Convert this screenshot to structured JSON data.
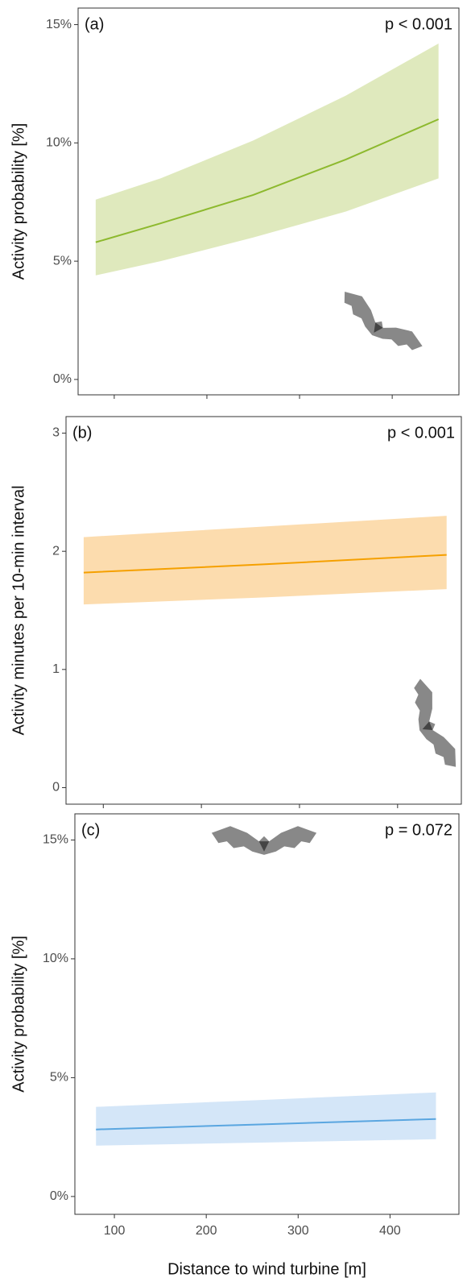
{
  "chart_data": [
    {
      "type": "line",
      "panel": "(a)",
      "annotation": "p < 0.001",
      "ylabel": "Activity probability [%]",
      "x": [
        80,
        150,
        250,
        350,
        450
      ],
      "series": [
        {
          "color": "#8db92e",
          "band_color": "#dfe9bd",
          "values": [
            5.8,
            6.6,
            7.8,
            9.3,
            11.0
          ],
          "lower": [
            4.4,
            5.0,
            6.0,
            7.1,
            8.5
          ],
          "upper": [
            7.6,
            8.5,
            10.1,
            12.0,
            14.2
          ]
        }
      ],
      "xlim": [
        61,
        472
      ],
      "ylim": [
        -0.65,
        15.7
      ],
      "xticks": [
        100,
        200,
        300,
        400
      ],
      "xtick_labels": false,
      "yticks": [
        {
          "value": 0,
          "label": "0%"
        },
        {
          "value": 5,
          "label": "5%"
        },
        {
          "value": 10,
          "label": "10%"
        },
        {
          "value": 15,
          "label": "15%"
        }
      ]
    },
    {
      "type": "line",
      "panel": "(b)",
      "annotation": "p < 0.001",
      "ylabel": "Activity minutes per 10-min interval",
      "x": [
        80,
        265,
        450
      ],
      "series": [
        {
          "color": "#f5a000",
          "band_color": "#fcdcae",
          "values": [
            1.82,
            1.89,
            1.97
          ],
          "lower": [
            1.55,
            1.61,
            1.68
          ],
          "upper": [
            2.12,
            2.21,
            2.3
          ]
        }
      ],
      "xlim": [
        62,
        465
      ],
      "ylim": [
        -0.14,
        3.14
      ],
      "xticks": [
        100,
        200,
        300,
        400
      ],
      "xtick_labels": false,
      "yticks": [
        0,
        1,
        2,
        3
      ]
    },
    {
      "type": "line",
      "panel": "(c)",
      "annotation": "p = 0.072",
      "ylabel": "Activity probability [%]",
      "xlabel": "Distance to wind turbine [m]",
      "x": [
        80,
        265,
        450
      ],
      "series": [
        {
          "color": "#5aa6e0",
          "band_color": "#d4e6f8",
          "values": [
            2.82,
            3.04,
            3.26
          ],
          "lower": [
            2.14,
            2.27,
            2.41
          ],
          "upper": [
            3.77,
            4.07,
            4.38
          ]
        }
      ],
      "xlim": [
        57,
        475
      ],
      "ylim": [
        -0.75,
        16.1
      ],
      "xticks": [
        100,
        200,
        300,
        400
      ],
      "xtick_labels": true,
      "yticks": [
        {
          "value": 0,
          "label": "0%"
        },
        {
          "value": 5,
          "label": "5%"
        },
        {
          "value": 10,
          "label": "10%"
        },
        {
          "value": 15,
          "label": "15%"
        }
      ]
    }
  ]
}
